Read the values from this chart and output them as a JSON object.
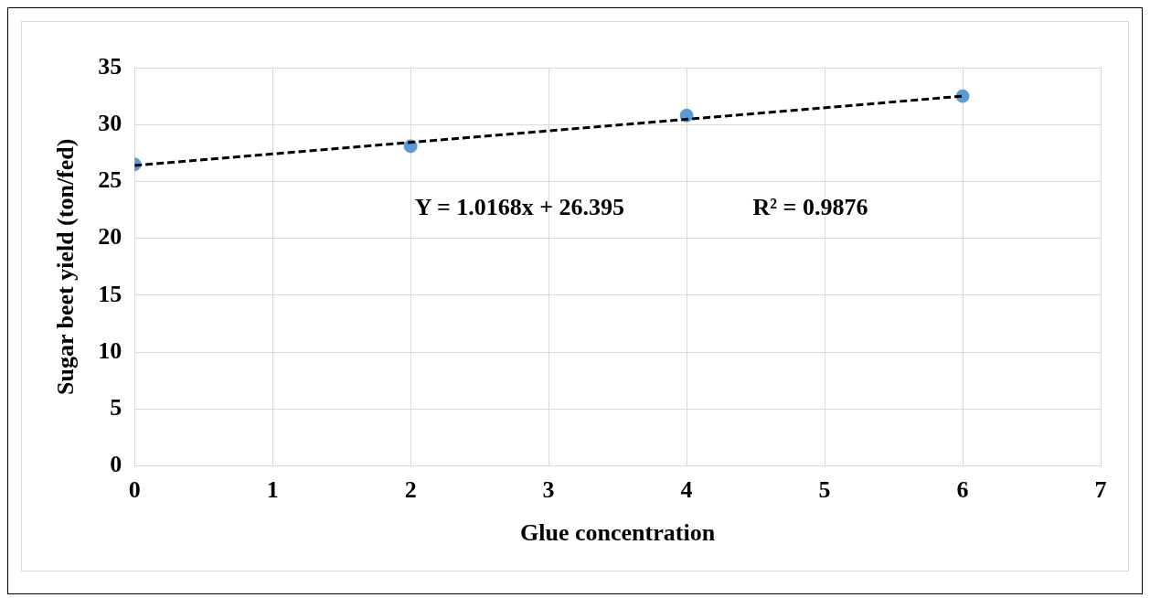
{
  "chart_data": {
    "type": "scatter",
    "xlabel": "Glue concentration",
    "ylabel": "Sugar beet yield (ton/fed)",
    "xlim": [
      0,
      7
    ],
    "xticks": [
      0,
      1,
      2,
      3,
      4,
      5,
      6,
      7
    ],
    "ylim": [
      0,
      35
    ],
    "yticks": [
      0,
      5,
      10,
      15,
      20,
      25,
      30,
      35
    ],
    "grid": true,
    "legend": false,
    "series": [
      {
        "type": "scatter",
        "color": "#5b9bd5",
        "marker": "circle",
        "x": [
          0,
          2,
          4,
          6
        ],
        "values": [
          26.5,
          28.1,
          30.8,
          32.5
        ]
      },
      {
        "type": "line",
        "color": "#000000",
        "marker": "none",
        "line_style": "dashed",
        "x": [
          0,
          6
        ],
        "values": [
          26.4,
          32.5
        ]
      }
    ],
    "annotations": [
      "Y = 1.0168x + 26.395",
      "R² = 0.9876"
    ]
  }
}
